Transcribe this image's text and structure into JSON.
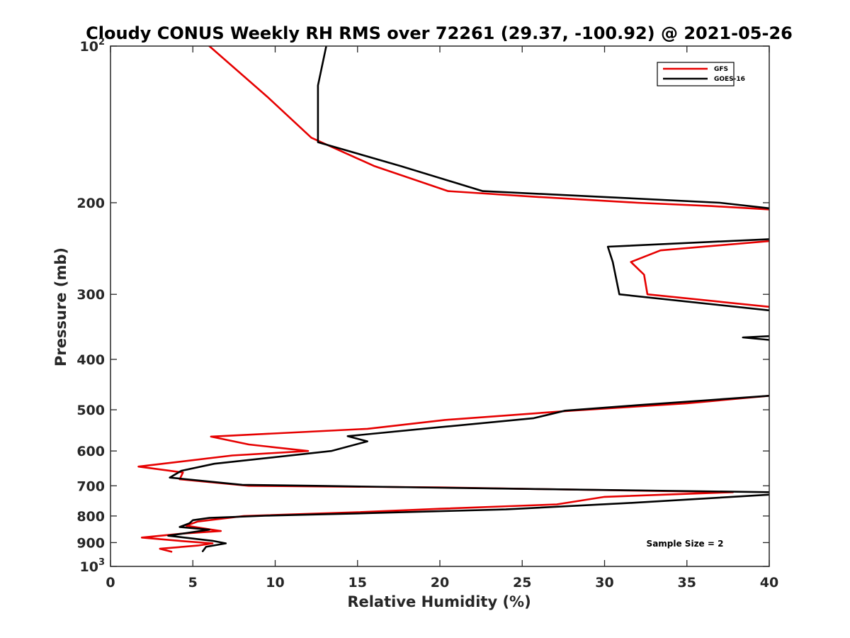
{
  "chart_data": {
    "type": "line",
    "title": "Cloudy CONUS Weekly RH RMS over 72261 (29.37, -100.92) @ 2021-05-26",
    "xlabel": "Relative Humidity (%)",
    "ylabel": "Pressure (mb)",
    "xlim": [
      0,
      40
    ],
    "ylim": [
      100,
      1000
    ],
    "y_scale": "log",
    "y_reversed": true,
    "x_ticks": [
      "0",
      "5",
      "10",
      "15",
      "20",
      "25",
      "30",
      "35",
      "40"
    ],
    "y_ticks": [
      {
        "value": 100,
        "base": "10",
        "exp": "2"
      },
      {
        "value": 200,
        "text": "200"
      },
      {
        "value": 300,
        "text": "300"
      },
      {
        "value": 400,
        "text": "400"
      },
      {
        "value": 500,
        "text": "500"
      },
      {
        "value": 600,
        "text": "600"
      },
      {
        "value": 700,
        "text": "700"
      },
      {
        "value": 800,
        "text": "800"
      },
      {
        "value": 900,
        "text": "900"
      },
      {
        "value": 1000,
        "base": "10",
        "exp": "3"
      }
    ],
    "grid": false,
    "legend_position": "top-right",
    "annotation": "Sample Size = 2",
    "series": [
      {
        "name": "GFS",
        "color": "#e60000",
        "segments": [
          [
            [
              6.0,
              100
            ],
            [
              9.5,
              125
            ],
            [
              12.2,
              150
            ],
            [
              16.0,
              170
            ],
            [
              20.5,
              190
            ],
            [
              26.0,
              195
            ],
            [
              32.0,
              200
            ],
            [
              36.5,
              203
            ],
            [
              40.0,
              206
            ]
          ],
          [
            [
              40.0,
              237
            ],
            [
              33.4,
              247
            ],
            [
              31.6,
              260
            ],
            [
              32.4,
              275
            ],
            [
              32.6,
              300
            ],
            [
              40.0,
              317
            ]
          ],
          [
            [
              40.0,
              470
            ],
            [
              35.0,
              486
            ],
            [
              28.0,
              502
            ],
            [
              20.3,
              523
            ],
            [
              15.6,
              544
            ],
            [
              6.1,
              563
            ],
            [
              8.4,
              583
            ],
            [
              12.0,
              600
            ],
            [
              7.4,
              612
            ],
            [
              1.7,
              643
            ],
            [
              4.4,
              660
            ],
            [
              4.2,
              680
            ],
            [
              8.4,
              700
            ],
            [
              20.0,
              705
            ],
            [
              37.8,
              720
            ],
            [
              30.0,
              735
            ],
            [
              27.1,
              760
            ],
            [
              20.0,
              775
            ],
            [
              15.0,
              787
            ],
            [
              8.1,
              800
            ],
            [
              5.3,
              820
            ],
            [
              4.6,
              835
            ],
            [
              6.7,
              855
            ],
            [
              4.3,
              865
            ],
            [
              1.9,
              880
            ],
            [
              4.5,
              895
            ],
            [
              6.2,
              903
            ],
            [
              5.3,
              912
            ],
            [
              3.0,
              925
            ],
            [
              3.7,
              937
            ]
          ]
        ]
      },
      {
        "name": "GOES-16",
        "color": "#000000",
        "segments": [
          [
            [
              13.1,
              100
            ],
            [
              12.6,
              119
            ],
            [
              12.6,
              153
            ],
            [
              17.6,
              170
            ],
            [
              22.6,
              190
            ],
            [
              30.0,
              195
            ],
            [
              37.0,
              200
            ],
            [
              40.0,
              205
            ]
          ],
          [
            [
              40.0,
              235
            ],
            [
              30.2,
              243
            ],
            [
              30.5,
              260
            ],
            [
              30.9,
              300
            ],
            [
              40.0,
              322
            ]
          ],
          [
            [
              40.0,
              361
            ],
            [
              38.4,
              363
            ],
            [
              40.0,
              367
            ]
          ],
          [
            [
              40.0,
              470
            ],
            [
              36.0,
              480
            ],
            [
              32.0,
              490
            ],
            [
              27.6,
              502
            ],
            [
              25.7,
              519
            ],
            [
              20.0,
              540
            ],
            [
              14.4,
              562
            ],
            [
              15.6,
              575
            ],
            [
              13.4,
              600
            ],
            [
              6.3,
              635
            ],
            [
              4.3,
              655
            ],
            [
              3.6,
              675
            ],
            [
              8.0,
              697
            ],
            [
              12.5,
              700
            ],
            [
              20.0,
              706
            ],
            [
              40.0,
              720
            ]
          ],
          [
            [
              40.0,
              728
            ],
            [
              31.6,
              755
            ],
            [
              24.0,
              777
            ],
            [
              15.0,
              791
            ],
            [
              9.4,
              799
            ],
            [
              6.0,
              807
            ],
            [
              5.0,
              815
            ],
            [
              4.8,
              826
            ],
            [
              4.2,
              840
            ],
            [
              6.0,
              850
            ],
            [
              3.5,
              873
            ],
            [
              6.2,
              893
            ],
            [
              7.0,
              903
            ],
            [
              5.8,
              917
            ],
            [
              5.6,
              935
            ]
          ]
        ]
      }
    ]
  }
}
